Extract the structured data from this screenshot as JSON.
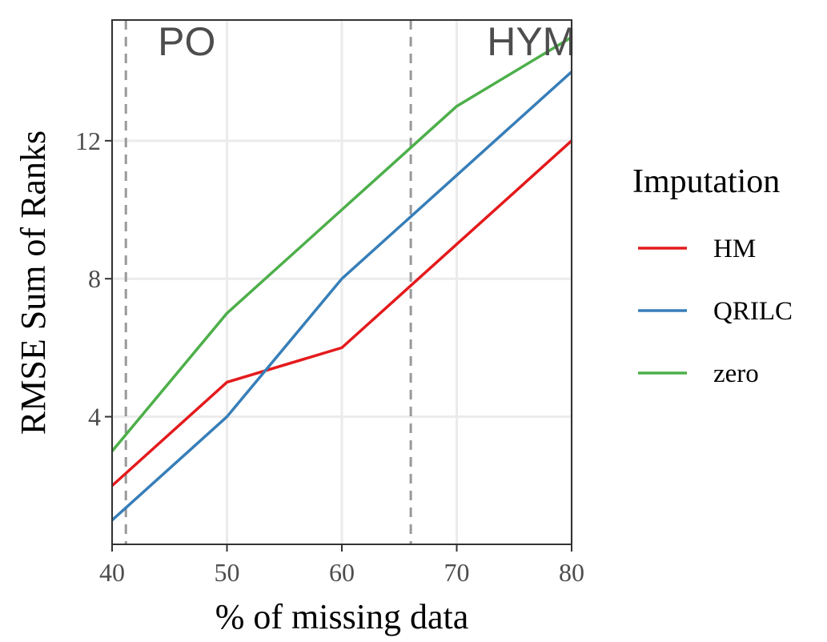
{
  "chart_data": {
    "type": "line",
    "xlabel": "% of missing data",
    "ylabel": "RMSE Sum of Ranks",
    "x": [
      40,
      50,
      60,
      70,
      80
    ],
    "xlim": [
      40,
      80
    ],
    "ylim": [
      0.3,
      15.5
    ],
    "xticks": [
      40,
      50,
      60,
      70,
      80
    ],
    "yticks": [
      4,
      8,
      12
    ],
    "grid": true,
    "legend": {
      "title": "Imputation",
      "placement": "right"
    },
    "series": [
      {
        "name": "HM",
        "color": "#E41A1C",
        "values": [
          2,
          5,
          6,
          9,
          12
        ]
      },
      {
        "name": "QRILC",
        "color": "#377EB8",
        "values": [
          1,
          4,
          8,
          11,
          14
        ]
      },
      {
        "name": "zero",
        "color": "#4DAF4A",
        "values": [
          3,
          7,
          10,
          13,
          15
        ]
      }
    ],
    "vlines": [
      {
        "x": 41.2,
        "style": "dashed",
        "color": "#999999"
      },
      {
        "x": 66,
        "style": "dashed",
        "color": "#999999"
      }
    ],
    "annotations": [
      {
        "text": "PO",
        "x": 46.5,
        "y": 14.9
      },
      {
        "text": "HYM",
        "x": 76.5,
        "y": 14.9
      }
    ]
  }
}
